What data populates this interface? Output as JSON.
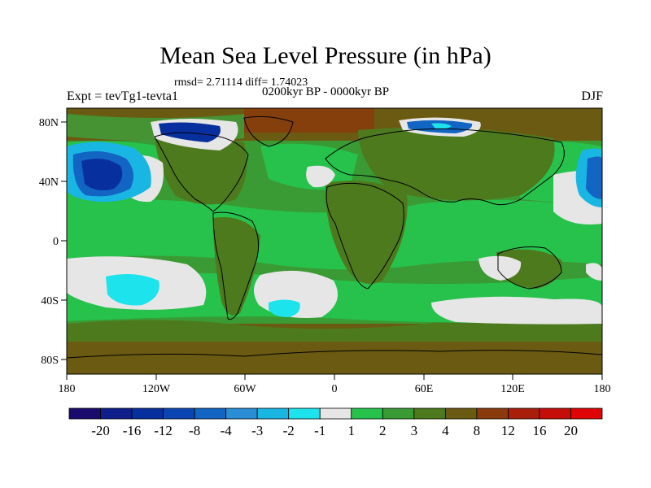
{
  "title": "Mean Sea Level Pressure (in hPa)",
  "stats": "rmsd= 2.71114 diff= 1.74023",
  "period": "0200kyr BP - 0000kyr BP",
  "experiment": "Expt = tevTg1-tevta1",
  "season": "DJF",
  "lat_labels": [
    "80N",
    "40N",
    "0",
    "40S",
    "80S"
  ],
  "lon_labels": [
    "180",
    "120W",
    "60W",
    "0",
    "60E",
    "120E",
    "180"
  ],
  "colorbar": {
    "labels": [
      "-20",
      "-16",
      "-12",
      "-8",
      "-4",
      "-3",
      "-2",
      "-1",
      "1",
      "2",
      "3",
      "4",
      "8",
      "12",
      "16",
      "20"
    ],
    "colors": [
      "#1a0a6e",
      "#0e1e8a",
      "#082f9e",
      "#0a45b3",
      "#1265c2",
      "#2a8ed4",
      "#19b5e3",
      "#1de3ec",
      "#e6e6e6",
      "#27c24c",
      "#3a9a34",
      "#4e7a1e",
      "#6a5a12",
      "#8a3b0d",
      "#a81e0a",
      "#c60e08",
      "#e00404"
    ]
  }
}
